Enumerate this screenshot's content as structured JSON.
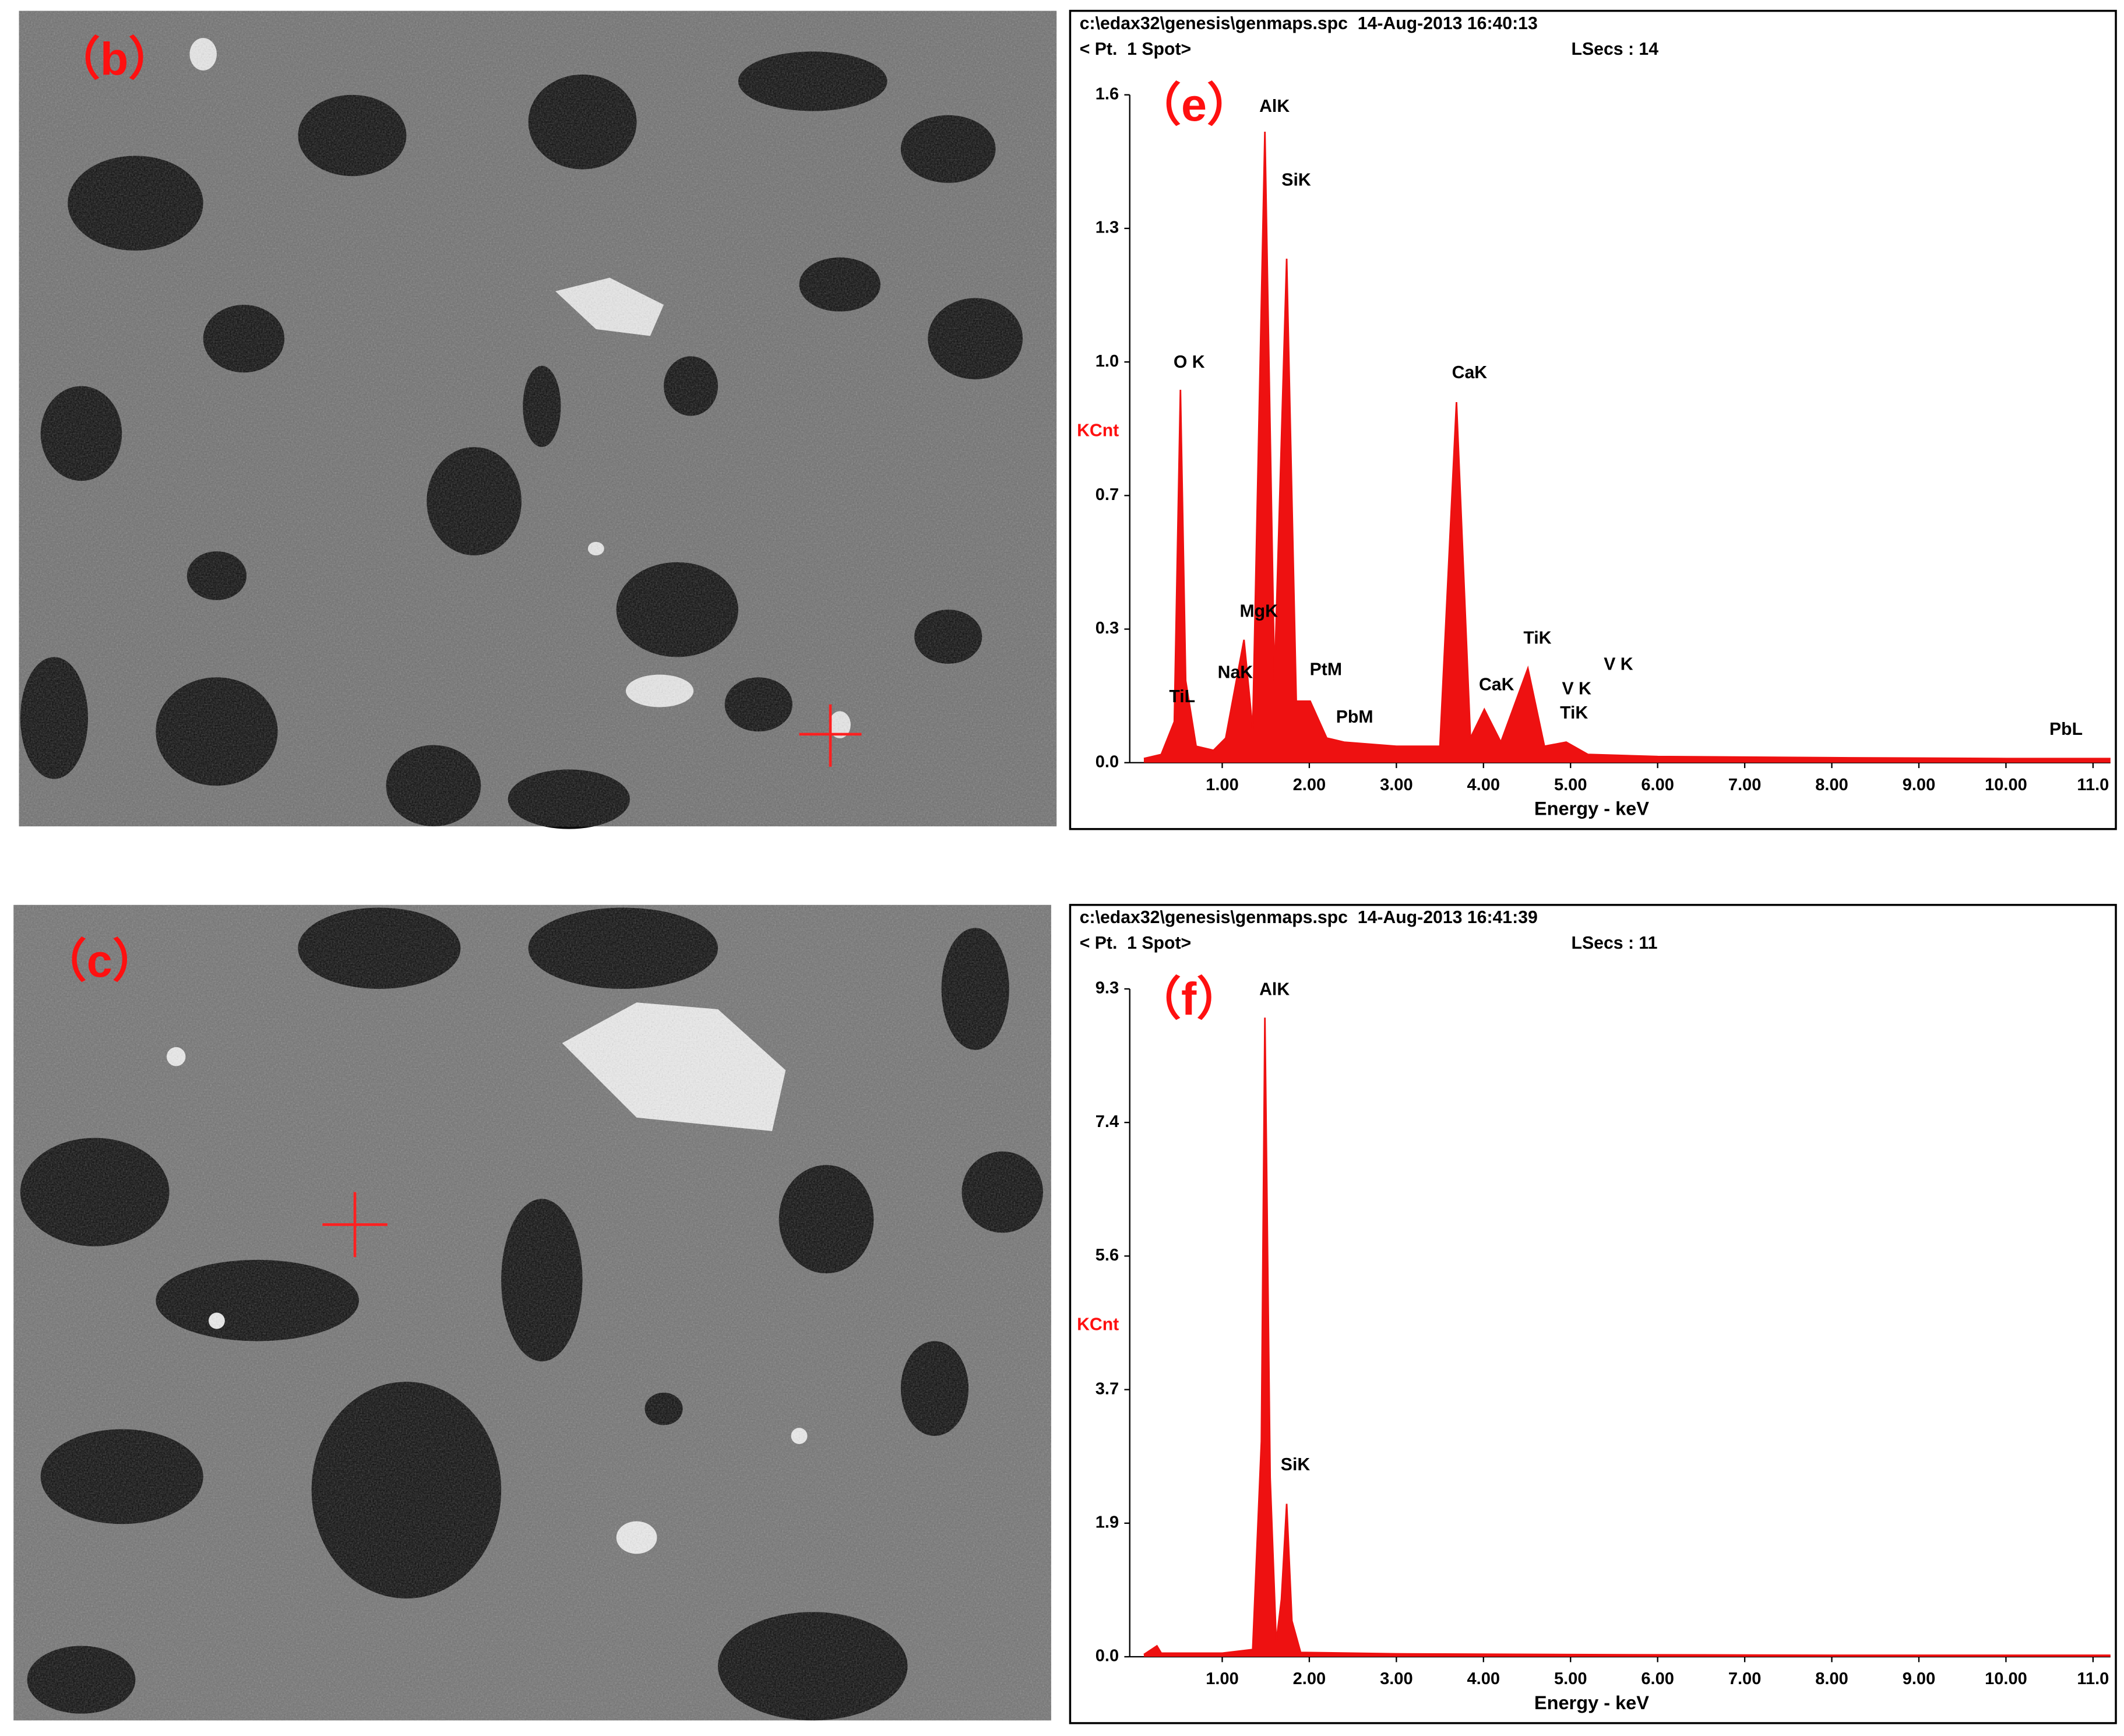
{
  "images": [
    {
      "label": "（b）"
    },
    {
      "label": "（c）"
    }
  ],
  "chart_data": [
    {
      "type": "area",
      "panel_label": "（e）",
      "header": [
        "c:\\edax32\\genesis\\genmaps.spc  14-Aug-2013 16:40:13",
        "< Pt.  1 Spot>",
        "LSecs : 14"
      ],
      "ylabel": "KCnt",
      "xlabel": "Energy - keV",
      "color": "#ee1111",
      "xlim": [
        0,
        11.2
      ],
      "ylim": [
        0,
        1.63
      ],
      "xticks": [
        {
          "value": 1,
          "label": "1.00"
        },
        {
          "value": 2,
          "label": "2.00"
        },
        {
          "value": 3,
          "label": "3.00"
        },
        {
          "value": 4,
          "label": "4.00"
        },
        {
          "value": 5,
          "label": "5.00"
        },
        {
          "value": 6,
          "label": "6.00"
        },
        {
          "value": 7,
          "label": "7.00"
        },
        {
          "value": 8,
          "label": "8.00"
        },
        {
          "value": 9,
          "label": "9.00"
        },
        {
          "value": 10,
          "label": "10.00"
        },
        {
          "value": 11,
          "label": "11.0"
        }
      ],
      "yticks": [
        {
          "value": 0,
          "label": "0.0"
        },
        {
          "value": 0.326,
          "label": "0.3"
        },
        {
          "value": 0.652,
          "label": "0.7"
        },
        {
          "value": 0.978,
          "label": "1.0"
        },
        {
          "value": 1.304,
          "label": "1.3"
        },
        {
          "value": 1.63,
          "label": "1.6"
        }
      ],
      "x": [
        0.1,
        0.3,
        0.45,
        0.52,
        0.58,
        0.7,
        0.9,
        1.04,
        1.25,
        1.35,
        1.49,
        1.6,
        1.74,
        1.85,
        2.01,
        2.2,
        2.4,
        3.0,
        3.5,
        3.69,
        3.85,
        4.01,
        4.2,
        4.51,
        4.7,
        4.95,
        5.2,
        6.0,
        8.0,
        10.0,
        11.2
      ],
      "values": [
        0.01,
        0.02,
        0.1,
        0.91,
        0.2,
        0.04,
        0.03,
        0.06,
        0.3,
        0.08,
        1.54,
        0.2,
        1.23,
        0.15,
        0.15,
        0.06,
        0.05,
        0.04,
        0.04,
        0.88,
        0.06,
        0.13,
        0.05,
        0.23,
        0.04,
        0.05,
        0.02,
        0.015,
        0.012,
        0.01,
        0.01
      ],
      "annotations": [
        {
          "text": "O K",
          "x": 0.62,
          "y": 0.975
        },
        {
          "text": "AlK",
          "x": 1.6,
          "y": 1.6
        },
        {
          "text": "SiK",
          "x": 1.85,
          "y": 1.42
        },
        {
          "text": "CaK",
          "x": 3.84,
          "y": 0.95
        },
        {
          "text": "MgK",
          "x": 1.42,
          "y": 0.367
        },
        {
          "text": "NaK",
          "x": 1.15,
          "y": 0.218
        },
        {
          "text": "TiL",
          "x": 0.54,
          "y": 0.159
        },
        {
          "text": "PtM",
          "x": 2.19,
          "y": 0.225
        },
        {
          "text": "PbM",
          "x": 2.52,
          "y": 0.109
        },
        {
          "text": "TiK",
          "x": 4.62,
          "y": 0.302
        },
        {
          "text": "CaK",
          "x": 4.15,
          "y": 0.188
        },
        {
          "text": "V K",
          "x": 5.07,
          "y": 0.178
        },
        {
          "text": "V K",
          "x": 5.55,
          "y": 0.238
        },
        {
          "text": "TiK",
          "x": 5.04,
          "y": 0.119
        },
        {
          "text": "PbL",
          "x": 10.69,
          "y": 0.079
        }
      ]
    },
    {
      "type": "area",
      "panel_label": "（f）",
      "header": [
        "c:\\edax32\\genesis\\genmaps.spc  14-Aug-2013 16:41:39",
        "< Pt.  1 Spot>",
        "LSecs : 11"
      ],
      "ylabel": "KCnt",
      "xlabel": "Energy - keV",
      "color": "#ee1111",
      "xlim": [
        0,
        11.2
      ],
      "ylim": [
        0,
        9.3
      ],
      "xticks": [
        {
          "value": 1,
          "label": "1.00"
        },
        {
          "value": 2,
          "label": "2.00"
        },
        {
          "value": 3,
          "label": "3.00"
        },
        {
          "value": 4,
          "label": "4.00"
        },
        {
          "value": 5,
          "label": "5.00"
        },
        {
          "value": 6,
          "label": "6.00"
        },
        {
          "value": 7,
          "label": "7.00"
        },
        {
          "value": 8,
          "label": "8.00"
        },
        {
          "value": 9,
          "label": "9.00"
        },
        {
          "value": 10,
          "label": "10.00"
        },
        {
          "value": 11,
          "label": "11.0"
        }
      ],
      "yticks": [
        {
          "value": 0,
          "label": "0.0"
        },
        {
          "value": 1.86,
          "label": "1.9"
        },
        {
          "value": 3.72,
          "label": "3.7"
        },
        {
          "value": 5.58,
          "label": "5.6"
        },
        {
          "value": 7.44,
          "label": "7.4"
        },
        9.3
      ],
      "x": [
        0.1,
        0.25,
        0.3,
        0.5,
        1.0,
        1.35,
        1.45,
        1.49,
        1.55,
        1.62,
        1.68,
        1.74,
        1.8,
        1.9,
        3.0,
        5.0,
        8.0,
        11.2
      ],
      "values": [
        0.03,
        0.15,
        0.05,
        0.05,
        0.05,
        0.1,
        3.0,
        8.9,
        2.5,
        0.2,
        0.8,
        2.13,
        0.5,
        0.06,
        0.04,
        0.03,
        0.02,
        0.02
      ],
      "annotations": [
        {
          "text": "AlK",
          "x": 1.6,
          "y": 9.28
        },
        {
          "text": "SiK",
          "x": 1.84,
          "y": 2.66
        }
      ]
    }
  ]
}
